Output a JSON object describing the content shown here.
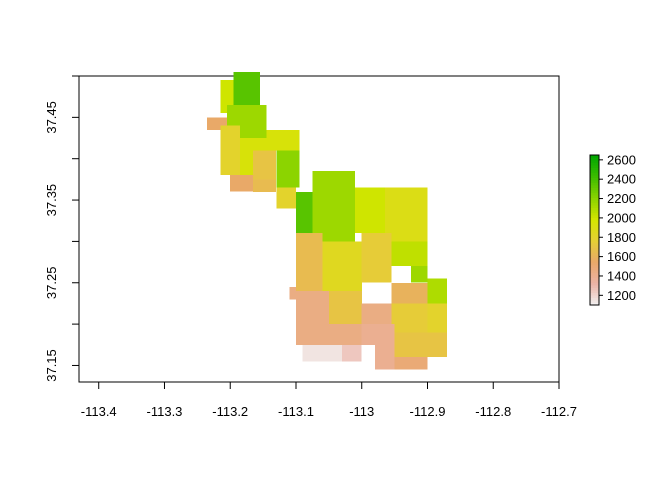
{
  "chart_data": {
    "type": "heatmap",
    "title": "",
    "xlabel": "",
    "ylabel": "",
    "xlim": [
      -113.43,
      -112.7
    ],
    "ylim": [
      37.13,
      37.5
    ],
    "x_ticks": [
      -113.4,
      -113.3,
      -113.2,
      -113.1,
      -113.0,
      -112.9,
      -112.8,
      -112.7
    ],
    "x_tick_labels": [
      "-113.4",
      "-113.3",
      "-113.2",
      "-113.1",
      "-113",
      "-112.9",
      "-112.8",
      "-112.7"
    ],
    "y_ticks": [
      37.15,
      37.25,
      37.35,
      37.45
    ],
    "y_tick_labels": [
      "37.15",
      "37.25",
      "37.35",
      "37.45"
    ],
    "legend": {
      "placement": "right",
      "min": 1100,
      "max": 2650,
      "ticks": [
        1200,
        1400,
        1600,
        1800,
        2000,
        2200,
        2400,
        2600
      ],
      "tick_labels": [
        "1200",
        "1400",
        "1600",
        "1800",
        "2000",
        "2200",
        "2400",
        "2600"
      ],
      "colors": [
        "#f2f2f2",
        "#ecb3a6",
        "#e9a86a",
        "#e6cf35",
        "#d4e600",
        "#8ad300",
        "#3cbc00",
        "#00a600"
      ]
    },
    "grid": false,
    "blocks": [
      {
        "x": [
          -113.195,
          -113.155
        ],
        "y": [
          37.465,
          37.505
        ],
        "value": 2350
      },
      {
        "x": [
          -113.215,
          -113.195
        ],
        "y": [
          37.455,
          37.495
        ],
        "value": 2000
      },
      {
        "x": [
          -113.205,
          -113.145
        ],
        "y": [
          37.425,
          37.465
        ],
        "value": 2150
      },
      {
        "x": [
          -113.235,
          -113.205
        ],
        "y": [
          37.435,
          37.45
        ],
        "value": 1550
      },
      {
        "x": [
          -113.215,
          -113.185
        ],
        "y": [
          37.38,
          37.44
        ],
        "value": 1800
      },
      {
        "x": [
          -113.185,
          -113.145
        ],
        "y": [
          37.38,
          37.425
        ],
        "value": 1950
      },
      {
        "x": [
          -113.145,
          -113.095
        ],
        "y": [
          37.41,
          37.435
        ],
        "value": 1950
      },
      {
        "x": [
          -113.13,
          -113.095
        ],
        "y": [
          37.365,
          37.41
        ],
        "value": 2200
      },
      {
        "x": [
          -113.165,
          -113.13
        ],
        "y": [
          37.375,
          37.41
        ],
        "value": 1700
      },
      {
        "x": [
          -113.2,
          -113.165
        ],
        "y": [
          37.36,
          37.38
        ],
        "value": 1550
      },
      {
        "x": [
          -113.165,
          -113.13
        ],
        "y": [
          37.36,
          37.375
        ],
        "value": 1650
      },
      {
        "x": [
          -113.13,
          -113.1
        ],
        "y": [
          37.34,
          37.365
        ],
        "value": 1800
      },
      {
        "x": [
          -113.1,
          -113.075
        ],
        "y": [
          37.31,
          37.36
        ],
        "value": 2350
      },
      {
        "x": [
          -113.075,
          -113.01
        ],
        "y": [
          37.3,
          37.385
        ],
        "value": 2150
      },
      {
        "x": [
          -113.01,
          -112.965
        ],
        "y": [
          37.31,
          37.365
        ],
        "value": 2000
      },
      {
        "x": [
          -112.965,
          -112.9
        ],
        "y": [
          37.3,
          37.365
        ],
        "value": 1900
      },
      {
        "x": [
          -113.1,
          -113.06
        ],
        "y": [
          37.24,
          37.31
        ],
        "value": 1650
      },
      {
        "x": [
          -113.06,
          -113.0
        ],
        "y": [
          37.24,
          37.3
        ],
        "value": 1850
      },
      {
        "x": [
          -113.0,
          -112.955
        ],
        "y": [
          37.25,
          37.31
        ],
        "value": 1750
      },
      {
        "x": [
          -112.955,
          -112.9
        ],
        "y": [
          37.27,
          37.3
        ],
        "value": 2050
      },
      {
        "x": [
          -112.925,
          -112.9
        ],
        "y": [
          37.25,
          37.27
        ],
        "value": 2150
      },
      {
        "x": [
          -112.9,
          -112.87
        ],
        "y": [
          37.225,
          37.255
        ],
        "value": 2100
      },
      {
        "x": [
          -112.955,
          -112.9
        ],
        "y": [
          37.225,
          37.25
        ],
        "value": 1600
      },
      {
        "x": [
          -113.1,
          -113.05
        ],
        "y": [
          37.2,
          37.24
        ],
        "value": 1450
      },
      {
        "x": [
          -113.05,
          -113.0
        ],
        "y": [
          37.2,
          37.24
        ],
        "value": 1700
      },
      {
        "x": [
          -113.0,
          -112.955
        ],
        "y": [
          37.2,
          37.225
        ],
        "value": 1450
      },
      {
        "x": [
          -113.11,
          -113.1
        ],
        "y": [
          37.23,
          37.245
        ],
        "value": 1450
      },
      {
        "x": [
          -112.955,
          -112.9
        ],
        "y": [
          37.19,
          37.225
        ],
        "value": 1750
      },
      {
        "x": [
          -112.9,
          -112.87
        ],
        "y": [
          37.19,
          37.225
        ],
        "value": 1800
      },
      {
        "x": [
          -113.1,
          -113.0
        ],
        "y": [
          37.175,
          37.2
        ],
        "value": 1450
      },
      {
        "x": [
          -113.0,
          -112.95
        ],
        "y": [
          37.175,
          37.2
        ],
        "value": 1400
      },
      {
        "x": [
          -112.95,
          -112.87
        ],
        "y": [
          37.16,
          37.19
        ],
        "value": 1700
      },
      {
        "x": [
          -113.09,
          -113.03
        ],
        "y": [
          37.155,
          37.175
        ],
        "value": 1150
      },
      {
        "x": [
          -113.03,
          -113.0
        ],
        "y": [
          37.155,
          37.175
        ],
        "value": 1250
      },
      {
        "x": [
          -112.98,
          -112.95
        ],
        "y": [
          37.145,
          37.175
        ],
        "value": 1400
      },
      {
        "x": [
          -112.95,
          -112.9
        ],
        "y": [
          37.145,
          37.16
        ],
        "value": 1500
      }
    ]
  }
}
